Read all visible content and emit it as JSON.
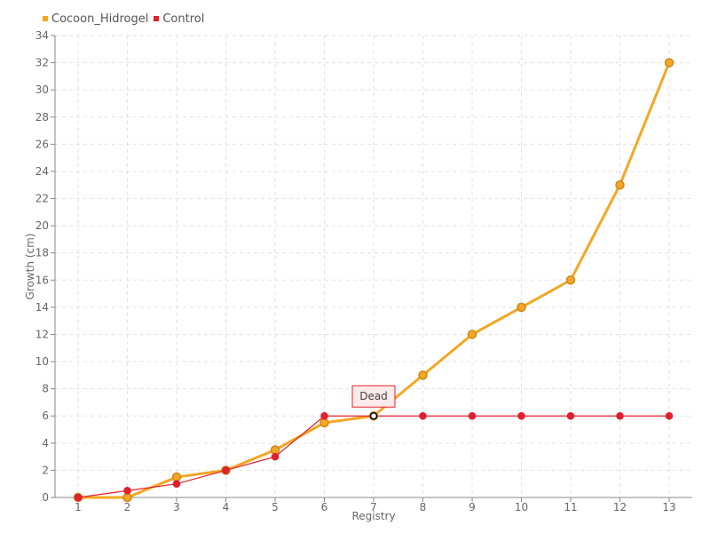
{
  "chart_data": {
    "type": "line",
    "x": [
      1,
      2,
      3,
      4,
      5,
      6,
      7,
      8,
      9,
      10,
      11,
      12,
      13
    ],
    "series": [
      {
        "name": "Cocoon_Hidrogel",
        "color": "#f5a623",
        "marker_stroke": "#c98a1a",
        "values": [
          0,
          0,
          1.5,
          2,
          3.5,
          5.5,
          6,
          9,
          12,
          14,
          16,
          23,
          32
        ]
      },
      {
        "name": "Control",
        "color": "#e0202c",
        "marker_stroke": "#e0202c",
        "values": [
          0,
          0.5,
          1,
          2,
          3,
          6,
          6,
          6,
          6,
          6,
          6,
          6,
          6
        ]
      }
    ],
    "xlabel": "Registry",
    "ylabel": "Growth (cm)",
    "ylim": [
      0,
      34
    ],
    "ytick_step": 2,
    "grid": true,
    "legend_position": "top-left",
    "annotations": [
      {
        "text": "Dead",
        "x": 7,
        "y": 6
      }
    ]
  }
}
